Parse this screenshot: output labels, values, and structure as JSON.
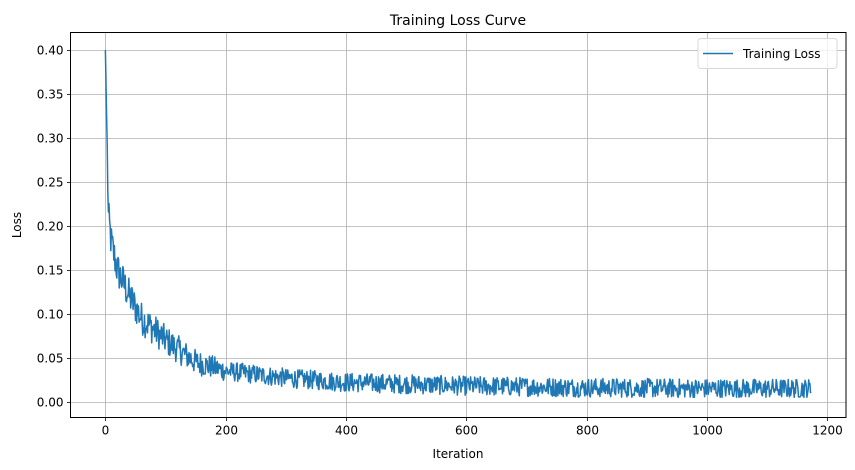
{
  "chart_data": {
    "type": "line",
    "title": "Training Loss Curve",
    "xlabel": "Iteration",
    "ylabel": "Loss",
    "xlim": [
      -58,
      1231
    ],
    "ylim": [
      -0.018,
      0.42
    ],
    "x_ticks": [
      0,
      200,
      400,
      600,
      800,
      1000,
      1200
    ],
    "x_tick_labels": [
      "0",
      "200",
      "400",
      "600",
      "800",
      "1000",
      "1200"
    ],
    "y_ticks": [
      0.0,
      0.05,
      0.1,
      0.15,
      0.2,
      0.25,
      0.3,
      0.35,
      0.4
    ],
    "y_tick_labels": [
      "0.00",
      "0.05",
      "0.10",
      "0.15",
      "0.20",
      "0.25",
      "0.30",
      "0.35",
      "0.40"
    ],
    "grid": true,
    "legend": {
      "position": "upper right",
      "entries": [
        "Training Loss"
      ]
    },
    "series": [
      {
        "name": "Training Loss",
        "color": "#1f77b4",
        "n_points": 1174,
        "x_range": [
          0,
          1173
        ],
        "start_value": 0.4,
        "key_points": [
          {
            "x": 0,
            "y": 0.4
          },
          {
            "x": 5,
            "y": 0.21
          },
          {
            "x": 10,
            "y": 0.18
          },
          {
            "x": 20,
            "y": 0.15
          },
          {
            "x": 40,
            "y": 0.12
          },
          {
            "x": 60,
            "y": 0.095
          },
          {
            "x": 100,
            "y": 0.07
          },
          {
            "x": 150,
            "y": 0.045
          },
          {
            "x": 200,
            "y": 0.035
          },
          {
            "x": 300,
            "y": 0.027
          },
          {
            "x": 400,
            "y": 0.022
          },
          {
            "x": 600,
            "y": 0.018
          },
          {
            "x": 800,
            "y": 0.016
          },
          {
            "x": 1000,
            "y": 0.015
          },
          {
            "x": 1173,
            "y": 0.015
          }
        ],
        "noise_band": {
          "late_min": 0.005,
          "late_max": 0.032
        }
      }
    ]
  }
}
